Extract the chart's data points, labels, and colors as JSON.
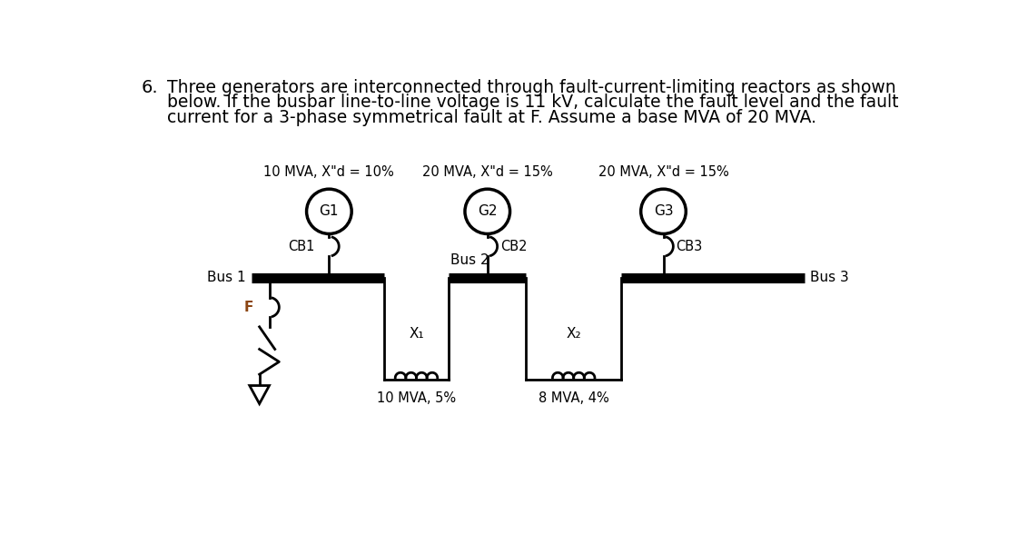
{
  "title_number": "6.",
  "title_text": "Three generators are interconnected through fault-current-limiting reactors as shown\nbelow. If the busbar line-to-line voltage is 11 kV, calculate the fault level and the fault\ncurrent for a 3-phase symmetrical fault at F. Assume a base MVA of 20 MVA.",
  "gen_labels": [
    "G1",
    "G2",
    "G3"
  ],
  "gen_ratings": [
    "10 MVA, X\"d = 10%",
    "20 MVA, X\"d = 15%",
    "20 MVA, X\"d = 15%"
  ],
  "cb_labels": [
    "CB1",
    "CB2",
    "CB3"
  ],
  "bus_labels": [
    "Bus 1",
    "Bus 2",
    "Bus 3"
  ],
  "reactor1_label": "X₁",
  "reactor1_rating": "10 MVA, 5%",
  "reactor2_label": "X₂",
  "reactor2_rating": "8 MVA, 4%",
  "fault_label": "F",
  "background_color": "#ffffff",
  "text_color": "#000000",
  "line_color": "#000000",
  "bus_color": "#000000",
  "reactor_label_color": "#000000",
  "reactor_rating_color": "#000000",
  "fault_label_color": "#8B4513"
}
